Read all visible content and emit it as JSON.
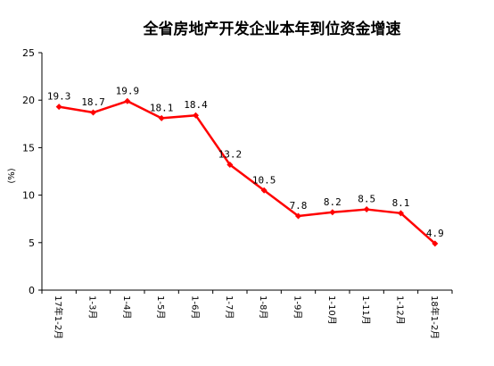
{
  "chart_data": {
    "type": "line",
    "title": "全省房地产开发企业本年到位资金增速",
    "ylabel": "(%)",
    "xlabel": "",
    "ylim": [
      0,
      25
    ],
    "yticks": [
      0,
      5,
      10,
      15,
      20,
      25
    ],
    "categories": [
      "17年1-2月",
      "1-3月",
      "1-4月",
      "1-5月",
      "1-6月",
      "1-7月",
      "1-8月",
      "1-9月",
      "1-10月",
      "1-11月",
      "1-12月",
      "18年1-2月"
    ],
    "series": [
      {
        "values": [
          19.3,
          18.7,
          19.9,
          18.1,
          18.4,
          13.2,
          10.5,
          7.8,
          8.2,
          8.5,
          8.1,
          4.9
        ],
        "labels": [
          "19.3",
          "18.7",
          "19.9",
          "18.1",
          "18.4",
          "13.2",
          "10.5",
          "7.8",
          "8.2",
          "8.5",
          "8.1",
          "4.9"
        ],
        "color": "#ff0000"
      }
    ],
    "grid": false,
    "legend": "none"
  }
}
